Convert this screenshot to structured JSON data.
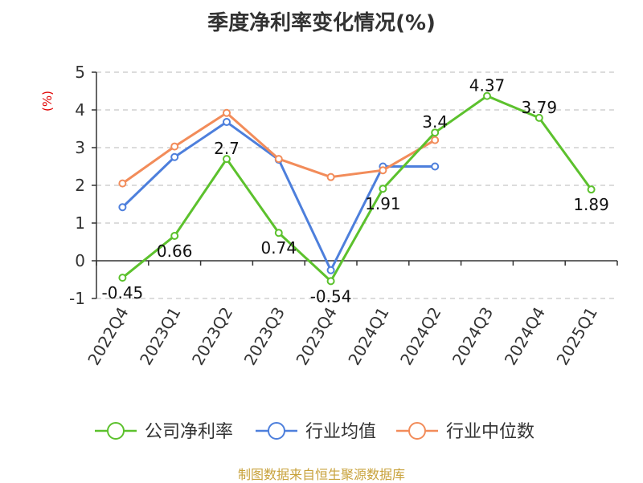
{
  "chart_data": {
    "type": "line",
    "title": "季度净利率变化情况(%)",
    "ylabel": "(%)",
    "categories": [
      "2022Q4",
      "2023Q1",
      "2023Q2",
      "2023Q3",
      "2023Q4",
      "2024Q1",
      "2024Q2",
      "2024Q3",
      "2024Q4",
      "2025Q1"
    ],
    "ylim": [
      -1,
      5
    ],
    "yticks": [
      -1,
      0,
      1,
      2,
      3,
      4,
      5
    ],
    "grid": true,
    "legend_position": "bottom",
    "series": [
      {
        "name": "公司净利率",
        "color": "#5cc12d",
        "values": [
          -0.45,
          0.66,
          2.7,
          0.74,
          -0.54,
          1.91,
          3.4,
          4.37,
          3.79,
          1.89
        ],
        "labels": [
          "-0.45",
          "0.66",
          "2.7",
          "0.74",
          "-0.54",
          "1.91",
          "3.4",
          "4.37",
          "3.79",
          "1.89"
        ],
        "show_labels": true
      },
      {
        "name": "行业均值",
        "color": "#4d7fdc",
        "values": [
          1.42,
          2.75,
          3.68,
          2.68,
          -0.25,
          2.5,
          2.5,
          null,
          null,
          null
        ],
        "show_labels": false
      },
      {
        "name": "行业中位数",
        "color": "#f28c5a",
        "values": [
          2.05,
          3.03,
          3.92,
          2.7,
          2.22,
          2.4,
          3.2,
          null,
          null,
          null
        ],
        "show_labels": false
      }
    ]
  },
  "footer": {
    "source": "制图数据来自恒生聚源数据库"
  }
}
